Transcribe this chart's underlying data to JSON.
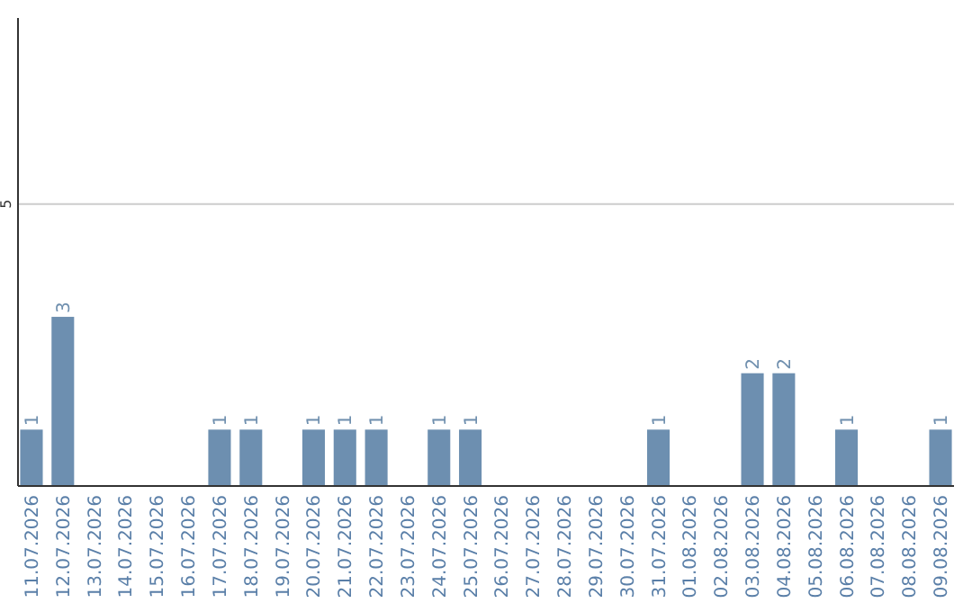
{
  "chart_data": {
    "type": "bar",
    "categories": [
      "11.07.2026",
      "12.07.2026",
      "13.07.2026",
      "14.07.2026",
      "15.07.2026",
      "16.07.2026",
      "17.07.2026",
      "18.07.2026",
      "19.07.2026",
      "20.07.2026",
      "21.07.2026",
      "22.07.2026",
      "23.07.2026",
      "24.07.2026",
      "25.07.2026",
      "26.07.2026",
      "27.07.2026",
      "28.07.2026",
      "29.07.2026",
      "30.07.2026",
      "31.07.2026",
      "01.08.2026",
      "02.08.2026",
      "03.08.2026",
      "04.08.2026",
      "05.08.2026",
      "06.08.2026",
      "07.08.2026",
      "08.08.2026",
      "09.08.2026"
    ],
    "values": [
      1,
      3,
      0,
      0,
      0,
      0,
      1,
      1,
      0,
      1,
      1,
      1,
      0,
      1,
      1,
      0,
      0,
      0,
      0,
      0,
      1,
      0,
      0,
      2,
      2,
      0,
      1,
      0,
      0,
      1
    ],
    "value_labels": [
      "1",
      "3",
      null,
      null,
      null,
      null,
      "1",
      "1",
      null,
      "1",
      "1",
      "1",
      null,
      "1",
      "1",
      null,
      null,
      null,
      null,
      null,
      "1",
      null,
      null,
      "2",
      "2",
      null,
      "1",
      null,
      null,
      "1"
    ],
    "color": "#6d8fb0",
    "ylim": [
      0,
      8.3
    ],
    "yticks": [
      5
    ],
    "grid": "y"
  }
}
